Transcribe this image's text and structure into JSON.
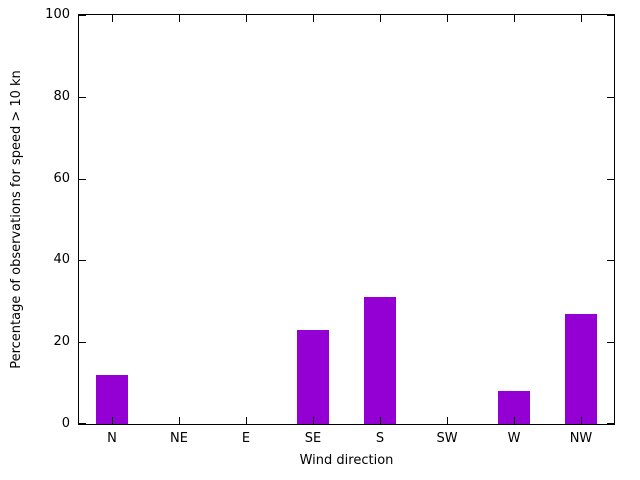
{
  "chart_data": {
    "type": "bar",
    "categories": [
      "N",
      "NE",
      "E",
      "SE",
      "S",
      "SW",
      "W",
      "NW"
    ],
    "values": [
      12,
      0,
      0,
      23,
      31,
      0,
      8,
      27
    ],
    "title": "",
    "xlabel": "Wind direction",
    "ylabel": "Percentage of observations for speed > 10 kn",
    "ylim": [
      0,
      100
    ],
    "yticks": [
      0,
      20,
      40,
      60,
      80,
      100
    ],
    "bar_color": "#9400d3",
    "grid": false,
    "legend": "none",
    "frame_color": "#000000",
    "background_color": "#ffffff"
  }
}
